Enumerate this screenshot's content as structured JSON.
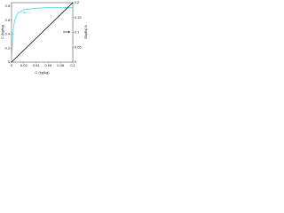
{
  "chart_data": {
    "type": "line",
    "xlabel": "C (kg/kg)",
    "ylabel": "C (kg/kg)",
    "y2label": "q (kg/kg)",
    "xlim": [
      0,
      0.1
    ],
    "xticks": [
      0,
      0.02,
      0.04,
      0.06,
      0.08,
      0.1
    ],
    "ylim": [
      0,
      0.85
    ],
    "yticks": [
      0,
      0.2,
      0.4,
      0.6,
      0.8
    ],
    "y2lim": [
      0,
      0.2
    ],
    "y2ticks": [
      0,
      0.05,
      0.1,
      0.15,
      0.2
    ],
    "series": [
      {
        "color": "#4fd6e0",
        "axis": "y",
        "x": [
          0,
          0.002,
          0.005,
          0.01,
          0.02,
          0.04,
          0.06,
          0.08,
          0.1
        ],
        "values": [
          0,
          0.4,
          0.6,
          0.7,
          0.75,
          0.77,
          0.78,
          0.78,
          0.78
        ]
      },
      {
        "color": "#000000",
        "axis": "y2",
        "x": [
          0,
          0.1
        ],
        "values": [
          0,
          0.2
        ]
      }
    ]
  }
}
